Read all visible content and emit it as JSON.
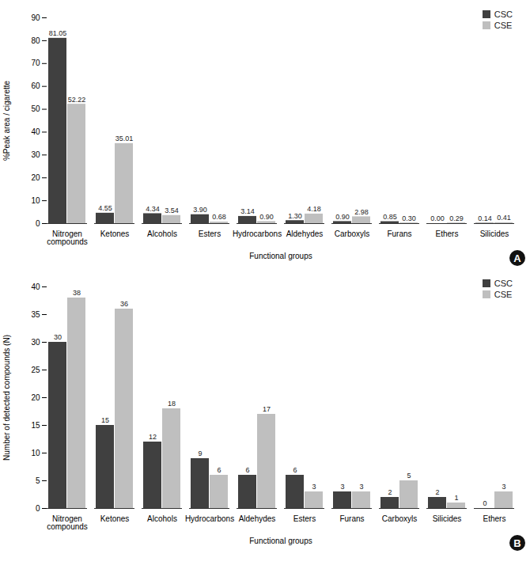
{
  "chart_data": [
    {
      "type": "bar",
      "y_label": "%Peak area / cigarette",
      "x_label": "Functional groups",
      "annotations": [
        "A"
      ],
      "categories": [
        "Nitrogen compounds",
        "Ketones",
        "Alcohols",
        "Esters",
        "Hydrocarbons",
        "Aldehydes",
        "Carboxyls",
        "Furans",
        "Ethers",
        "Silicides"
      ],
      "series": [
        {
          "name": "CSC",
          "color": "#404040",
          "values": [
            81.05,
            4.55,
            4.34,
            3.9,
            3.14,
            1.3,
            0.9,
            0.85,
            0,
            0.14
          ],
          "value_labels": [
            "81.05",
            "4.55",
            "4.34",
            "3.90",
            "3.14",
            "1.30",
            "0.90",
            "0.85",
            "0.00",
            "0.14"
          ]
        },
        {
          "name": "CSE",
          "color": "#bfbfbf",
          "values": [
            52.22,
            35.01,
            3.54,
            0.68,
            0.9,
            4.18,
            2.98,
            0.3,
            0.29,
            0.41
          ],
          "value_labels": [
            "52.22",
            "35.01",
            "3.54",
            "0.68",
            "0.90",
            "4.18",
            "2.98",
            "0.30",
            "0.29",
            "0.41"
          ]
        }
      ],
      "ylim": [
        0,
        90
      ],
      "yticks": [
        0,
        10,
        20,
        30,
        40,
        50,
        60,
        70,
        80,
        90
      ],
      "grid": false,
      "legend": "top-right",
      "data_labels": true
    },
    {
      "type": "bar",
      "y_label": "Number of detected compounds (N)",
      "x_label": "Functional groups",
      "annotations": [
        "B"
      ],
      "categories": [
        "Nitrogen compounds",
        "Ketones",
        "Alcohols",
        "Hydrocarbons",
        "Aldehydes",
        "Esters",
        "Furans",
        "Carboxyls",
        "Silicides",
        "Ethers"
      ],
      "series": [
        {
          "name": "CSC",
          "color": "#404040",
          "values": [
            30,
            15,
            12,
            9,
            6,
            6,
            3,
            2,
            2,
            0
          ]
        },
        {
          "name": "CSE",
          "color": "#bfbfbf",
          "values": [
            38,
            36,
            18,
            6,
            17,
            3,
            3,
            5,
            1,
            3
          ]
        }
      ],
      "ylim": [
        0,
        40
      ],
      "yticks": [
        0,
        5,
        10,
        15,
        20,
        25,
        30,
        35,
        40
      ],
      "grid": false,
      "legend": "top-right",
      "data_labels": true
    }
  ]
}
